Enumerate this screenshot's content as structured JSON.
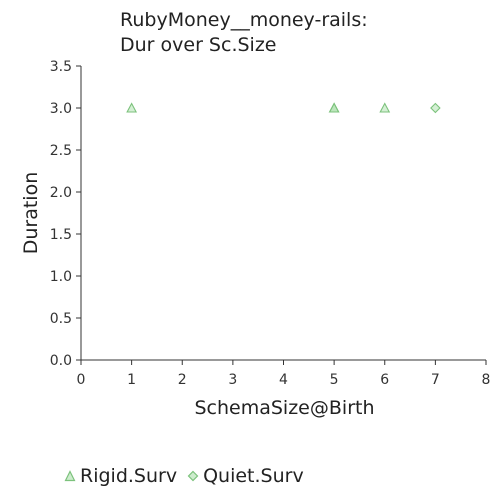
{
  "chart_data": {
    "type": "scatter",
    "title_lines": [
      "RubyMoney__money-rails:",
      "Dur over Sc.Size"
    ],
    "xlabel": "SchemaSize@Birth",
    "ylabel": "Duration",
    "xlim": [
      0,
      8
    ],
    "ylim": [
      0,
      3.5
    ],
    "x_ticks": [
      "0",
      "1",
      "2",
      "3",
      "4",
      "5",
      "6",
      "7",
      "8"
    ],
    "y_ticks": [
      "0.0",
      "0.5",
      "1.0",
      "1.5",
      "2.0",
      "2.5",
      "3.0",
      "3.5"
    ],
    "series": [
      {
        "name": "Rigid.Surv",
        "marker": "triangle",
        "color": "#8fd18f",
        "points": [
          {
            "x": 1,
            "y": 3.0
          },
          {
            "x": 5,
            "y": 3.0
          },
          {
            "x": 5,
            "y": 3.0
          },
          {
            "x": 6,
            "y": 3.0
          }
        ]
      },
      {
        "name": "Quiet.Surv",
        "marker": "diamond",
        "color": "#8fd18f",
        "points": [
          {
            "x": 7,
            "y": 3.0
          }
        ]
      }
    ]
  }
}
